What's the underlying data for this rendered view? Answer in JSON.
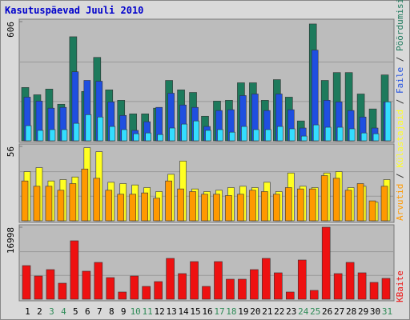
{
  "chart_data": [
    {
      "type": "bar",
      "title": "Kasutuspäevad Juuli 2010",
      "legend_separator": " / ",
      "ylim": [
        0,
        606
      ],
      "yticks": [
        606
      ],
      "series": [
        {
          "name": "Pöördumisi",
          "color": "#1d7a5c",
          "values": [
            271,
            234,
            263,
            186,
            529,
            251,
            424,
            259,
            206,
            137,
            137,
            166,
            307,
            259,
            246,
            125,
            202,
            206,
            295,
            295,
            206,
            311,
            222,
            101,
            594,
            307,
            347,
            347,
            238,
            162,
            335
          ]
        },
        {
          "name": "Faile",
          "color": "#1f4fe0",
          "values": [
            222,
            202,
            166,
            170,
            351,
            307,
            303,
            198,
            129,
            53,
            97,
            170,
            242,
            182,
            170,
            73,
            154,
            158,
            230,
            238,
            154,
            238,
            158,
            65,
            461,
            206,
            198,
            154,
            121,
            65,
            198
          ]
        },
        {
          "color": "#33ddff",
          "values": [
            77,
            53,
            57,
            57,
            89,
            133,
            121,
            73,
            57,
            36,
            40,
            32,
            65,
            85,
            101,
            53,
            57,
            44,
            73,
            57,
            57,
            73,
            61,
            24,
            81,
            69,
            69,
            61,
            40,
            36,
            198
          ]
        }
      ]
    },
    {
      "type": "bar",
      "ylim": [
        0,
        56
      ],
      "yticks": [
        56
      ],
      "series": [
        {
          "name": "Külastajaid",
          "color": "#ffff22",
          "values": [
            37,
            40,
            30,
            31,
            33,
            55,
            52,
            29,
            28,
            27,
            25,
            22,
            35,
            45,
            24,
            22,
            23,
            25,
            26,
            25,
            29,
            22,
            36,
            26,
            25,
            36,
            37,
            25,
            26,
            14,
            31
          ]
        },
        {
          "name": "Arvutid",
          "color": "#ff9900",
          "values": [
            30,
            26,
            26,
            23,
            28,
            39,
            32,
            23,
            20,
            20,
            21,
            17,
            30,
            24,
            22,
            20,
            20,
            19,
            20,
            23,
            22,
            20,
            25,
            24,
            24,
            34,
            32,
            23,
            28,
            15,
            26
          ]
        }
      ]
    },
    {
      "type": "bar",
      "ylim": [
        0,
        16998
      ],
      "yticks": [
        16998
      ],
      "categories": [
        1,
        2,
        3,
        4,
        5,
        6,
        7,
        8,
        9,
        10,
        11,
        12,
        13,
        14,
        15,
        16,
        17,
        18,
        19,
        20,
        21,
        22,
        23,
        24,
        25,
        26,
        27,
        28,
        29,
        30,
        31
      ],
      "category_colors": [
        "#000",
        "#000",
        "#2e8b57",
        "#2e8b57",
        "#000",
        "#000",
        "#000",
        "#000",
        "#000",
        "#2e8b57",
        "#2e8b57",
        "#000",
        "#000",
        "#000",
        "#000",
        "#000",
        "#2e8b57",
        "#2e8b57",
        "#000",
        "#000",
        "#000",
        "#000",
        "#000",
        "#2e8b57",
        "#2e8b57",
        "#000",
        "#000",
        "#000",
        "#000",
        "#000",
        "#2e8b57"
      ],
      "series": [
        {
          "name": "KBaite",
          "color": "#ee1111",
          "values": [
            7934,
            5478,
            6989,
            3778,
            13790,
            6612,
            8689,
            5100,
            1700,
            5478,
            3022,
            4156,
            9634,
            6045,
            8878,
            3022,
            8878,
            4723,
            4723,
            6989,
            9634,
            6234,
            1700,
            9256,
            2078,
            16998,
            6045,
            8689,
            6234,
            3967,
            4911
          ]
        }
      ]
    }
  ]
}
